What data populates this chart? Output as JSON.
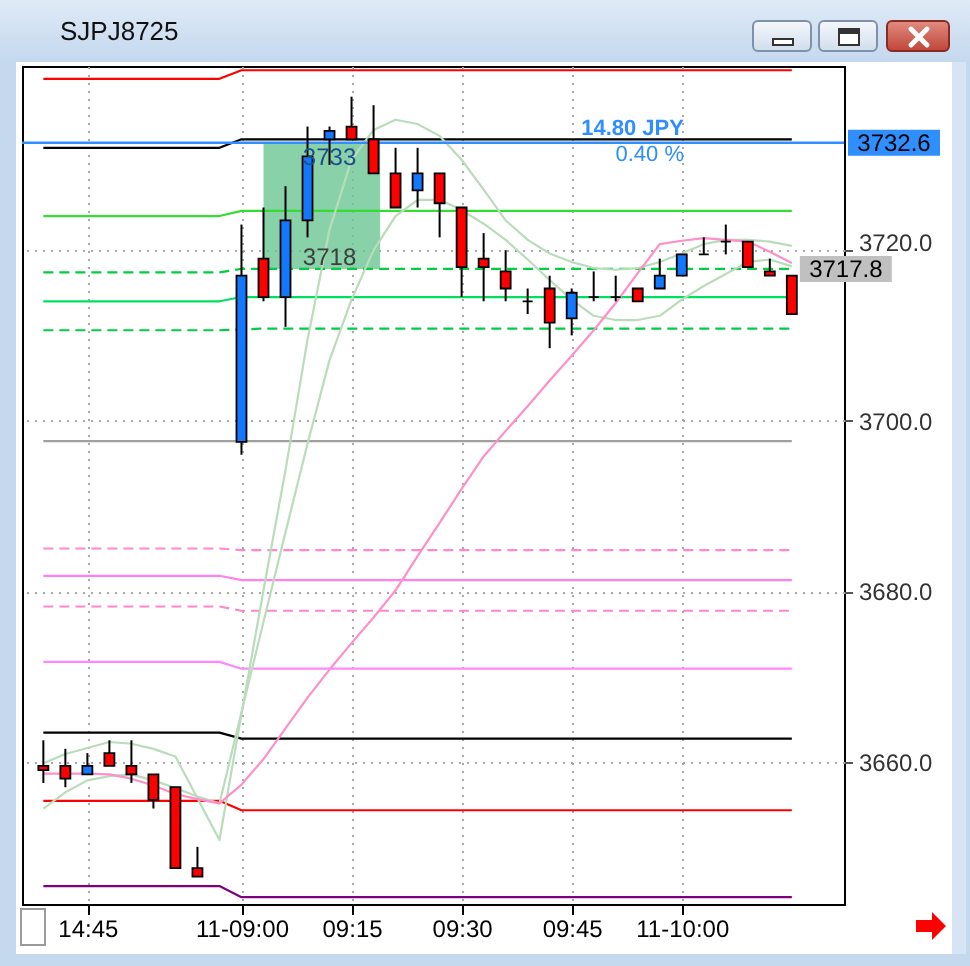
{
  "chart_data": {
    "type": "candlestick",
    "title": "SJPJ8725",
    "categories": [
      null,
      null,
      "14:45",
      null,
      null,
      null,
      null,
      null,
      null,
      "11-09:00",
      null,
      null,
      null,
      null,
      "09:15",
      null,
      null,
      null,
      null,
      "09:30",
      null,
      null,
      null,
      null,
      "09:45",
      null,
      null,
      null,
      null,
      "11-10:00",
      null,
      null,
      null,
      null,
      null
    ],
    "ohlc": [
      [
        3659.5,
        3662.5,
        3657.5,
        3659.0
      ],
      [
        3659.5,
        3661.5,
        3657.0,
        3658.0
      ],
      [
        3658.5,
        3661.0,
        3658.5,
        3659.5
      ],
      [
        3661.0,
        3662.5,
        3659.5,
        3659.5
      ],
      [
        3659.5,
        3662.5,
        3657.5,
        3658.5
      ],
      [
        3658.5,
        3658.5,
        3654.5,
        3655.5
      ],
      [
        3657.0,
        3657.0,
        3647.5,
        3647.5
      ],
      [
        3647.5,
        3650.0,
        3646.5,
        3646.5
      ],
      null,
      [
        3697.5,
        3723.0,
        3696.0,
        3717.0
      ],
      [
        3719.0,
        3725.0,
        3714.0,
        3714.5
      ],
      [
        3714.5,
        3727.5,
        3711.0,
        3723.5
      ],
      [
        3723.5,
        3734.5,
        3721.5,
        3731.0
      ],
      [
        3733.0,
        3734.5,
        3730.0,
        3734.0
      ],
      [
        3734.5,
        3738.0,
        3733.0,
        3733.0
      ],
      [
        3733.0,
        3737.0,
        3729.0,
        3729.0
      ],
      [
        3729.0,
        3732.0,
        3725.0,
        3725.0
      ],
      [
        3727.0,
        3732.0,
        3725.0,
        3729.0
      ],
      [
        3729.0,
        3729.0,
        3721.5,
        3725.5
      ],
      [
        3725.0,
        3725.0,
        3714.5,
        3718.0
      ],
      [
        3719.0,
        3722.0,
        3714.0,
        3718.0
      ],
      [
        3717.5,
        3720.0,
        3714.0,
        3715.5
      ],
      [
        3714.0,
        3715.5,
        3712.5,
        3714.0
      ],
      [
        3715.5,
        3717.0,
        3708.5,
        3711.5
      ],
      [
        3712.0,
        3715.5,
        3710.0,
        3715.0
      ],
      [
        3714.5,
        3717.5,
        3714.0,
        3714.5
      ],
      [
        3714.5,
        3717.0,
        3714.0,
        3714.5
      ],
      [
        3715.5,
        3715.5,
        3714.0,
        3714.0
      ],
      [
        3715.5,
        3719.0,
        3715.5,
        3717.0
      ],
      [
        3717.0,
        3719.5,
        3717.0,
        3719.5
      ],
      [
        3719.5,
        3721.5,
        3719.5,
        3719.5
      ],
      [
        3721.0,
        3723.0,
        3719.5,
        3721.0
      ],
      [
        3721.0,
        3721.0,
        3718.0,
        3718.0
      ],
      [
        3717.5,
        3719.0,
        3717.0,
        3717.0
      ],
      [
        3717.0,
        3717.0,
        3712.5,
        3712.5
      ]
    ],
    "colors": [
      "#ff0000",
      "#ff0000",
      "#1478ff",
      "#ff0000",
      "#ff0000",
      "#ff0000",
      "#ff0000",
      "#ff0000",
      null,
      "#1478ff",
      "#ff0000",
      "#1478ff",
      "#1478ff",
      "#1478ff",
      "#ff0000",
      "#ff0000",
      "#ff0000",
      "#1478ff",
      "#ff0000",
      "#ff0000",
      "#ff0000",
      "#ff0000",
      "#000000",
      "#ff0000",
      "#1478ff",
      "#000000",
      "#000000",
      "#ff0000",
      "#1478ff",
      "#1478ff",
      "#000000",
      "#000000",
      "#ff0000",
      "#ff0000",
      "#ff0000"
    ],
    "series": [
      {
        "type": "line",
        "color": "#ff0000",
        "values": [
          3740.1,
          3740.1,
          3740.1,
          3740.1,
          3740.1,
          3740.1,
          3740.1,
          3740.1,
          3740.1,
          3741.1,
          3741.1,
          3741.1,
          3741.1,
          3741.1,
          3741.1,
          3741.1,
          3741.1,
          3741.1,
          3741.1,
          3741.1,
          3741.1,
          3741.1,
          3741.1,
          3741.1,
          3741.1,
          3741.1,
          3741.1,
          3741.1,
          3741.1,
          3741.1,
          3741.1,
          3741.1,
          3741.1,
          3741.1,
          3741.1
        ]
      },
      {
        "type": "line",
        "color": "#000000",
        "values": [
          3732.0,
          3732.0,
          3732.0,
          3732.0,
          3732.0,
          3732.0,
          3732.0,
          3732.0,
          3732.0,
          3733.0,
          3733.0,
          3733.0,
          3733.0,
          3733.0,
          3733.0,
          3733.0,
          3733.0,
          3733.0,
          3733.0,
          3733.0,
          3733.0,
          3733.0,
          3733.0,
          3733.0,
          3733.0,
          3733.0,
          3733.0,
          3733.0,
          3733.0,
          3733.0,
          3733.0,
          3733.0,
          3733.0,
          3733.0,
          3733.0
        ]
      },
      {
        "type": "line",
        "color": "#33dd33",
        "values": [
          3724.0,
          3724.0,
          3724.0,
          3724.0,
          3724.0,
          3724.0,
          3724.0,
          3724.0,
          3724.0,
          3724.6,
          3724.6,
          3724.6,
          3724.6,
          3724.6,
          3724.6,
          3724.6,
          3724.6,
          3724.6,
          3724.6,
          3724.6,
          3724.6,
          3724.6,
          3724.6,
          3724.6,
          3724.6,
          3724.6,
          3724.6,
          3724.6,
          3724.6,
          3724.6,
          3724.6,
          3724.6,
          3724.6,
          3724.6,
          3724.6
        ]
      },
      {
        "type": "line",
        "color": "#00cc44",
        "line_style": "dashed",
        "values": [
          3717.4,
          3717.4,
          3717.4,
          3717.4,
          3717.4,
          3717.4,
          3717.4,
          3717.4,
          3717.4,
          3717.8,
          3717.8,
          3717.8,
          3717.8,
          3717.8,
          3717.8,
          3717.8,
          3717.8,
          3717.8,
          3717.8,
          3717.8,
          3717.8,
          3717.8,
          3717.8,
          3717.8,
          3717.8,
          3717.8,
          3717.8,
          3717.8,
          3717.8,
          3717.8,
          3717.8,
          3717.8,
          3717.8,
          3717.8,
          3717.8
        ],
        "value_labels": [
          null,
          null,
          null,
          null,
          null,
          null,
          null,
          null,
          null,
          null,
          null,
          null,
          null,
          null,
          null,
          null,
          null,
          null,
          null,
          null,
          null,
          null,
          null,
          null,
          null,
          null,
          null,
          null,
          null,
          null,
          null,
          null,
          null,
          null,
          "3717.8"
        ]
      },
      {
        "type": "line",
        "color": "#00e060",
        "values": [
          3714.0,
          3714.0,
          3714.0,
          3714.0,
          3714.0,
          3714.0,
          3714.0,
          3714.0,
          3714.0,
          3714.5,
          3714.5,
          3714.5,
          3714.5,
          3714.5,
          3714.5,
          3714.5,
          3714.5,
          3714.5,
          3714.5,
          3714.5,
          3714.5,
          3714.5,
          3714.5,
          3714.5,
          3714.5,
          3714.5,
          3714.5,
          3714.5,
          3714.5,
          3714.5,
          3714.5,
          3714.5,
          3714.5,
          3714.5,
          3714.5
        ]
      },
      {
        "type": "line",
        "color": "#00cc44",
        "line_style": "dashed",
        "values": [
          3710.6,
          3710.6,
          3710.6,
          3710.6,
          3710.6,
          3710.6,
          3710.6,
          3710.6,
          3710.6,
          null,
          3710.8,
          3710.8,
          3710.8,
          3710.8,
          3710.8,
          3710.8,
          3710.8,
          3710.8,
          3710.8,
          3710.8,
          3710.8,
          3710.8,
          3710.8,
          3710.8,
          3710.8,
          3710.8,
          3710.8,
          3710.8,
          3710.8,
          3710.8,
          3710.8,
          3710.8,
          3710.8,
          3710.8,
          3710.8
        ]
      },
      {
        "type": "line",
        "color": "#a0a0a0",
        "values": [
          3697.6,
          3697.6,
          3697.6,
          3697.6,
          3697.6,
          3697.6,
          3697.6,
          3697.6,
          3697.6,
          3697.6,
          3697.6,
          3697.6,
          3697.6,
          3697.6,
          3697.6,
          3697.6,
          3697.6,
          3697.6,
          3697.6,
          3697.6,
          3697.6,
          3697.6,
          3697.6,
          3697.6,
          3697.6,
          3697.6,
          3697.6,
          3697.6,
          3697.6,
          3697.6,
          3697.6,
          3697.6,
          3697.6,
          3697.6,
          3697.6
        ]
      },
      {
        "type": "line",
        "color": "#ff88c8",
        "line_style": "dashed",
        "values": [
          3685.0,
          3685.0,
          3685.0,
          3685.0,
          3685.0,
          3685.0,
          3685.0,
          3685.0,
          3685.0,
          3684.8,
          3684.8,
          3684.8,
          3684.8,
          3684.8,
          3684.8,
          3684.8,
          3684.8,
          3684.8,
          3684.8,
          3684.8,
          3684.8,
          3684.8,
          3684.8,
          3684.8,
          3684.8,
          3684.8,
          3684.8,
          3684.8,
          3684.8,
          3684.8,
          3684.8,
          3684.8,
          3684.8,
          3684.8,
          3684.8
        ]
      },
      {
        "type": "line",
        "color": "#ff80f0",
        "values": [
          3681.8,
          3681.8,
          3681.8,
          3681.8,
          3681.8,
          3681.8,
          3681.8,
          3681.8,
          3681.8,
          3681.3,
          3681.3,
          3681.3,
          3681.3,
          3681.3,
          3681.3,
          3681.3,
          3681.3,
          3681.3,
          3681.3,
          3681.3,
          3681.3,
          3681.3,
          3681.3,
          3681.3,
          3681.3,
          3681.3,
          3681.3,
          3681.3,
          3681.3,
          3681.3,
          3681.3,
          3681.3,
          3681.3,
          3681.3,
          3681.3
        ]
      },
      {
        "type": "line",
        "color": "#ff88c8",
        "line_style": "dashed",
        "values": [
          3678.2,
          3678.2,
          3678.2,
          3678.2,
          3678.2,
          3678.2,
          3678.2,
          3678.2,
          3678.2,
          3677.7,
          3677.7,
          3677.7,
          3677.7,
          3677.7,
          3677.7,
          3677.7,
          3677.7,
          3677.7,
          3677.7,
          3677.7,
          3677.7,
          3677.7,
          3677.7,
          3677.7,
          3677.7,
          3677.7,
          3677.7,
          3677.7,
          3677.7,
          3677.7,
          3677.7,
          3677.7,
          3677.7,
          3677.7,
          3677.7
        ]
      },
      {
        "type": "line",
        "color": "#ff88ff",
        "values": [
          3671.7,
          3671.7,
          3671.7,
          3671.7,
          3671.7,
          3671.7,
          3671.7,
          3671.7,
          3671.7,
          3670.9,
          3670.9,
          3670.9,
          3670.9,
          3670.9,
          3670.9,
          3670.9,
          3670.9,
          3670.9,
          3670.9,
          3670.9,
          3670.9,
          3670.9,
          3670.9,
          3670.9,
          3670.9,
          3670.9,
          3670.9,
          3670.9,
          3670.9,
          3670.9,
          3670.9,
          3670.9,
          3670.9,
          3670.9,
          3670.9
        ]
      },
      {
        "type": "line",
        "color": "#000000",
        "values": [
          3663.4,
          3663.4,
          3663.4,
          3663.4,
          3663.4,
          3663.4,
          3663.4,
          3663.4,
          3663.4,
          3662.7,
          3662.7,
          3662.7,
          3662.7,
          3662.7,
          3662.7,
          3662.7,
          3662.7,
          3662.7,
          3662.7,
          3662.7,
          3662.7,
          3662.7,
          3662.7,
          3662.7,
          3662.7,
          3662.7,
          3662.7,
          3662.7,
          3662.7,
          3662.7,
          3662.7,
          3662.7,
          3662.7,
          3662.7,
          3662.7
        ]
      },
      {
        "type": "line",
        "color": "#ff0000",
        "values": [
          3655.4,
          3655.4,
          3655.4,
          3655.4,
          3655.4,
          3655.4,
          3655.4,
          3655.4,
          3655.4,
          3654.3,
          3654.3,
          3654.3,
          3654.3,
          3654.3,
          3654.3,
          3654.3,
          3654.3,
          3654.3,
          3654.3,
          3654.3,
          3654.3,
          3654.3,
          3654.3,
          3654.3,
          3654.3,
          3654.3,
          3654.3,
          3654.3,
          3654.3,
          3654.3,
          3654.3,
          3654.3,
          3654.3,
          3654.3,
          3654.3
        ]
      },
      {
        "type": "line",
        "color": "#800080",
        "values": [
          3645.4,
          3645.4,
          3645.4,
          3645.4,
          3645.4,
          3645.4,
          3645.4,
          3645.4,
          3645.4,
          3644.1,
          3644.1,
          3644.1,
          3644.1,
          3644.1,
          3644.1,
          3644.1,
          3644.1,
          3644.1,
          3644.1,
          3644.1,
          3644.1,
          3644.1,
          3644.1,
          3644.1,
          3644.1,
          3644.1,
          3644.1,
          3644.1,
          3644.1,
          3644.1,
          3644.1,
          3644.1,
          3644.1,
          3644.1,
          3644.1
        ]
      },
      {
        "type": "line",
        "color": "#b9dcb9",
        "values": [
          3659.8,
          3660.9,
          3661.6,
          3662.3,
          3662.1,
          3661.5,
          3660.6,
          3655.7,
          3650.8,
          3665.6,
          3680.1,
          3694.2,
          3709.5,
          3722.4,
          3730.6,
          3734.1,
          3735.3,
          3734.8,
          3733.4,
          3730.6,
          3727.1,
          3723.5,
          3721.2,
          3719.6,
          3718.6,
          3717.9,
          3717.7,
          3717.9,
          3718.6,
          3719.6,
          3720.7,
          3721.2,
          3721.2,
          3721.0,
          3720.5
        ]
      },
      {
        "type": "line",
        "color": "#b9dcb9",
        "values": [
          3654.5,
          3656.4,
          3657.8,
          3658.3,
          3658.5,
          3657.8,
          3656.9,
          3655.9,
          3655.1,
          3665.8,
          3676.4,
          3686.9,
          3697.3,
          3707.1,
          3714.2,
          3720.0,
          3724.0,
          3725.9,
          3725.9,
          3724.7,
          3723.1,
          3721.2,
          3718.9,
          3716.5,
          3714.2,
          3712.3,
          3711.8,
          3711.8,
          3712.3,
          3714.2,
          3715.8,
          3717.2,
          3718.6,
          3718.9,
          3718.1
        ]
      },
      {
        "type": "line",
        "color": "#ff8fc8",
        "values": [
          3658.6,
          3658.6,
          3658.6,
          3658.5,
          3658.0,
          3657.2,
          3656.2,
          3655.6,
          3655.1,
          3657.3,
          3660.3,
          3663.9,
          3667.5,
          3670.8,
          3673.9,
          3676.9,
          3680.1,
          3684.1,
          3688.0,
          3692.0,
          3695.8,
          3698.8,
          3701.7,
          3704.7,
          3707.6,
          3710.6,
          3713.8,
          3717.3,
          3720.7,
          3721.1,
          3721.4,
          3721.2,
          3721.0,
          3719.8,
          3718.5
        ]
      }
    ],
    "ylim": [
      3643.3,
      3741.6
    ],
    "yticks": [
      {
        "value": 3660,
        "label": "3660.0"
      },
      {
        "value": 3680,
        "label": "3680.0"
      },
      {
        "value": 3700,
        "label": "3700.0"
      },
      {
        "value": 3720,
        "label": "3720.0"
      }
    ],
    "grid": true,
    "ref_lines": [
      {
        "axis": "y",
        "value": 3732.6,
        "label": "3732.6",
        "color": "#2f8fff"
      }
    ],
    "bands": [
      {
        "axis": "y",
        "from": 3717.8,
        "to": 3732.6,
        "color": "#6cc592"
      }
    ],
    "annotations": [
      {
        "text": "3733",
        "y": 3732.6
      },
      {
        "text": "3718",
        "y": 3717.8
      },
      {
        "text": "14.80 JPY",
        "y": 3732.6
      },
      {
        "text": "0.40 %",
        "y": 3732.6
      }
    ]
  }
}
